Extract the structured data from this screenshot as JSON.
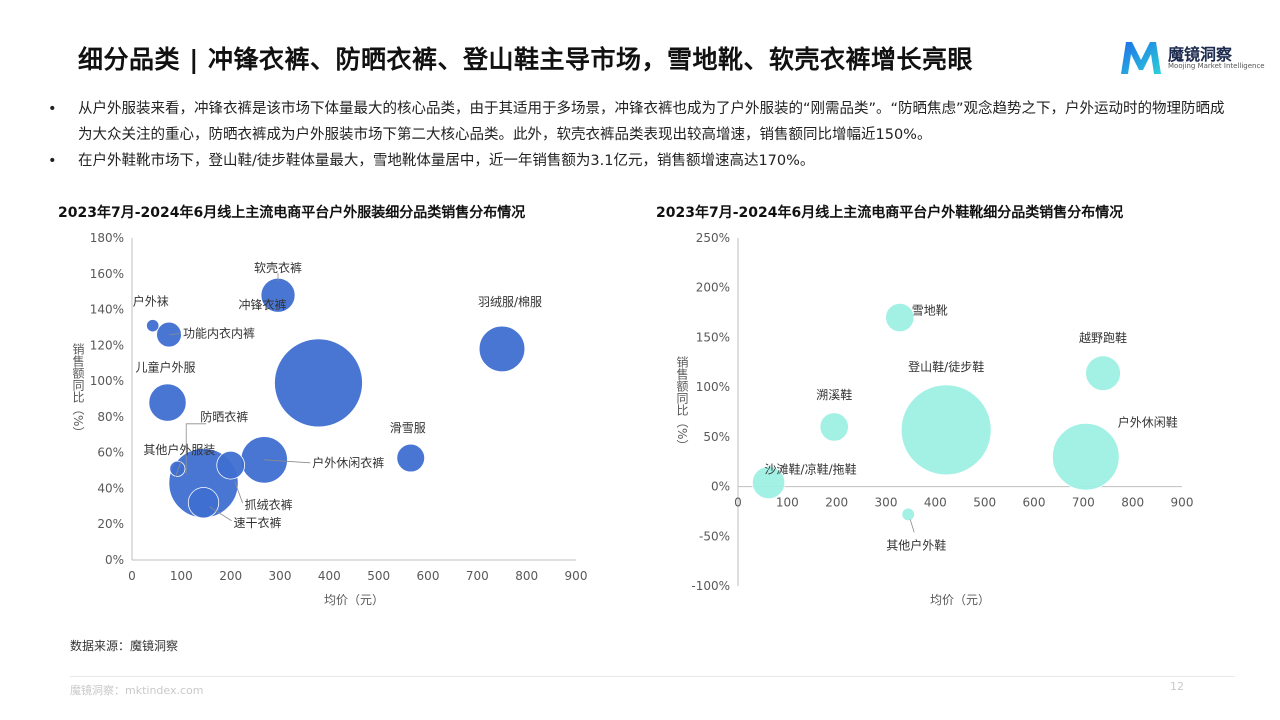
{
  "page": {
    "title": "细分品类 | 冲锋衣裤、防晒衣裤、登山鞋主导市场，雪地靴、软壳衣裤增长亮眼",
    "logo_name": "魔镜洞察",
    "logo_sub": "Moojing Market Intelligence",
    "bullets": [
      "从户外服装来看，冲锋衣裤是该市场下体量最大的核心品类，由于其适用于多场景，冲锋衣裤也成为了户外服装的“刚需品类”。“防晒焦虑”观念趋势之下，户外运动时的物理防晒成为大众关注的重心，防晒衣裤成为户外服装市场下第二大核心品类。此外，软壳衣裤品类表现出较高增速，销售额同比增幅近150%。",
      "在户外鞋靴市场下，登山鞋/徒步鞋体量最大，雪地靴体量居中，近一年销售额为3.1亿元，销售额增速高达170%。"
    ],
    "bullet_symbol": "•",
    "source": "数据来源：魔镜洞察",
    "footer": "魔镜洞察：mktindex.com",
    "page_number": "12"
  },
  "chart_data": [
    {
      "type": "scatter",
      "title": "2023年7月-2024年6月线上主流电商平台户外服装细分品类销售分布情况",
      "xlabel": "均价（元）",
      "ylabel": "销售额同比（%）",
      "xlim": [
        0,
        900
      ],
      "ylim": [
        0,
        180
      ],
      "xticks": [
        0,
        100,
        200,
        300,
        400,
        500,
        600,
        700,
        800,
        900
      ],
      "yticks": [
        0,
        20,
        40,
        60,
        80,
        100,
        120,
        140,
        160,
        180
      ],
      "ytick_suffix": "%",
      "grid": false,
      "color": "#3f6fd1",
      "points": [
        {
          "label": "户外袜",
          "x": 42,
          "y": 131,
          "size": 2
        },
        {
          "label": "功能内衣内裤",
          "x": 75,
          "y": 126,
          "size": 8
        },
        {
          "label": "软壳衣裤",
          "x": 296,
          "y": 148,
          "size": 15
        },
        {
          "label": "冲锋衣裤",
          "x": 378,
          "y": 99,
          "size": 100
        },
        {
          "label": "羽绒服/棉服",
          "x": 750,
          "y": 118,
          "size": 27
        },
        {
          "label": "儿童户外服",
          "x": 72,
          "y": 88,
          "size": 18
        },
        {
          "label": "滑雪服",
          "x": 565,
          "y": 57,
          "size": 10
        },
        {
          "label": "防晒衣裤",
          "x": 268,
          "y": 56,
          "size": 28
        },
        {
          "label": "户外休闲衣裤",
          "x": 268,
          "y": 56,
          "size": 28
        },
        {
          "label": "抓绒衣裤",
          "x": 200,
          "y": 53,
          "size": 10
        },
        {
          "label": "其他户外服装",
          "x": 92,
          "y": 51,
          "size": 3
        },
        {
          "label": "速干衣裤",
          "x": 145,
          "y": 32,
          "size": 12
        }
      ],
      "extra_bubbles": [
        {
          "x": 145,
          "y": 43,
          "size": 62
        }
      ]
    },
    {
      "type": "scatter",
      "title": "2023年7月-2024年6月线上主流电商平台户外鞋靴细分品类销售分布情况",
      "xlabel": "均价（元）",
      "ylabel": "销售额同比（%）",
      "xlim": [
        0,
        900
      ],
      "ylim": [
        -100,
        250
      ],
      "xticks": [
        0,
        100,
        200,
        300,
        400,
        500,
        600,
        700,
        800,
        900
      ],
      "yticks": [
        -100,
        -50,
        0,
        50,
        100,
        150,
        200,
        250
      ],
      "ytick_suffix": "%",
      "grid": false,
      "color": "#9eefe4",
      "points": [
        {
          "label": "雪地靴",
          "x": 328,
          "y": 170,
          "size": 10
        },
        {
          "label": "越野跑鞋",
          "x": 740,
          "y": 114,
          "size": 15
        },
        {
          "label": "溯溪鞋",
          "x": 195,
          "y": 60,
          "size": 10
        },
        {
          "label": "登山鞋/徒步鞋",
          "x": 422,
          "y": 57,
          "size": 100
        },
        {
          "label": "户外休闲鞋",
          "x": 705,
          "y": 30,
          "size": 55
        },
        {
          "label": "沙滩鞋/凉鞋/拖鞋",
          "x": 62,
          "y": 4,
          "size": 13
        },
        {
          "label": "其他户外鞋",
          "x": 345,
          "y": -28,
          "size": 2
        }
      ],
      "extra_bubbles": []
    }
  ]
}
